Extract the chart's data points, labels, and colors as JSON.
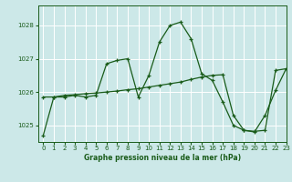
{
  "title": "Graphe pression niveau de la mer (hPa)",
  "bg_color": "#cce8e8",
  "grid_color": "#ffffff",
  "line_color": "#1a5c1a",
  "xlim": [
    -0.5,
    23
  ],
  "ylim": [
    1024.5,
    1028.6
  ],
  "yticks": [
    1025,
    1026,
    1027,
    1028
  ],
  "xticks": [
    0,
    1,
    2,
    3,
    4,
    5,
    6,
    7,
    8,
    9,
    10,
    11,
    12,
    13,
    14,
    15,
    16,
    17,
    18,
    19,
    20,
    21,
    22,
    23
  ],
  "series1_x": [
    0,
    1,
    2,
    3,
    4,
    5,
    6,
    7,
    8,
    9,
    10,
    11,
    12,
    13,
    14,
    15,
    16,
    17,
    18,
    19,
    20,
    21,
    22,
    23
  ],
  "series1_y": [
    1024.7,
    1025.85,
    1025.85,
    1025.9,
    1025.85,
    1025.9,
    1026.85,
    1026.95,
    1027.0,
    1025.85,
    1026.5,
    1027.5,
    1028.0,
    1028.1,
    1027.6,
    1026.55,
    1026.35,
    1025.7,
    1025.0,
    1024.85,
    1024.8,
    1025.3,
    1026.05,
    1026.7
  ],
  "series2_x": [
    0,
    1,
    2,
    3,
    4,
    5,
    6,
    7,
    8,
    9,
    10,
    11,
    12,
    13,
    14,
    15,
    16,
    17,
    18,
    19,
    20,
    21,
    22,
    23
  ],
  "series2_y": [
    1025.85,
    1025.85,
    1025.9,
    1025.92,
    1025.95,
    1025.97,
    1026.0,
    1026.03,
    1026.07,
    1026.1,
    1026.15,
    1026.2,
    1026.25,
    1026.3,
    1026.38,
    1026.45,
    1026.5,
    1026.52,
    1025.3,
    1024.85,
    1024.82,
    1024.85,
    1026.65,
    1026.7
  ],
  "tick_fontsize": 5,
  "xlabel_fontsize": 5.5
}
